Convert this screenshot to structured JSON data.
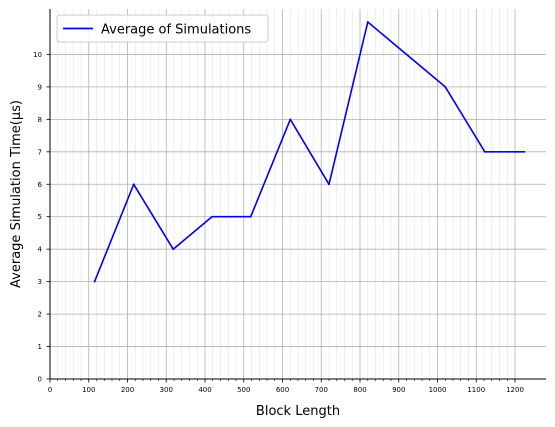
{
  "chart_data": {
    "type": "line",
    "title": "",
    "xlabel": "Block Length",
    "ylabel": "Average Simulation Time(µs)",
    "xlim": [
      0,
      1280
    ],
    "ylim": [
      0,
      11.4
    ],
    "x_ticks": [
      0,
      100,
      200,
      300,
      400,
      500,
      600,
      700,
      800,
      900,
      1000,
      1100,
      1200
    ],
    "y_ticks": [
      0,
      1,
      2,
      3,
      4,
      5,
      6,
      7,
      8,
      9,
      10
    ],
    "x_minor_step": 20,
    "grid": true,
    "legend_position": "top-left",
    "series": [
      {
        "name": "Average of Simulations",
        "color": "#0000ee",
        "x": [
          115,
          216,
          318,
          418,
          518,
          620,
          720,
          820,
          1020,
          1122,
          1224
        ],
        "y": [
          3,
          6,
          4,
          5,
          5,
          8,
          6,
          11,
          9,
          7,
          7
        ]
      }
    ]
  }
}
